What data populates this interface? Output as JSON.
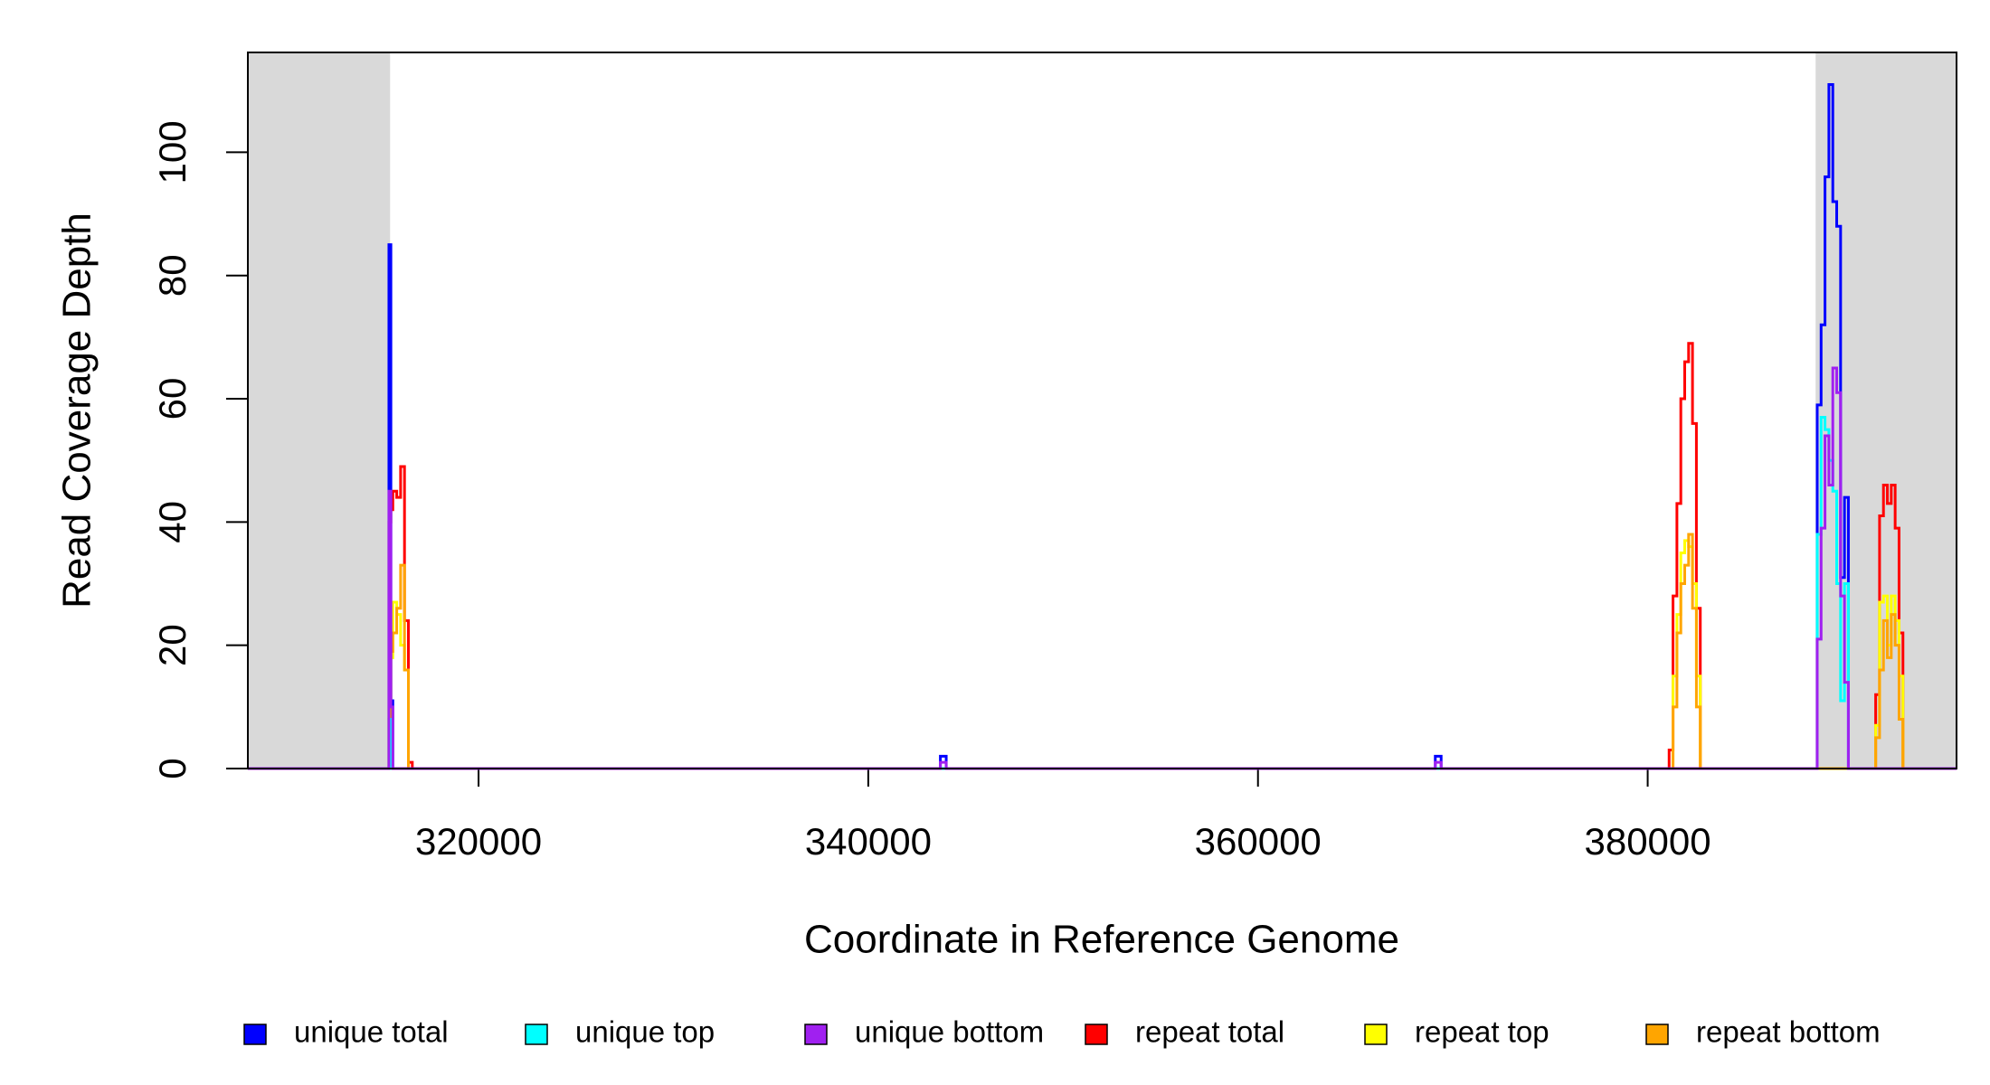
{
  "chart_data": {
    "type": "step",
    "x_label": "Coordinate in Reference Genome",
    "y_label": "Read Coverage Depth",
    "xlim": [
      308160,
      395850
    ],
    "ylim": [
      0,
      116.2
    ],
    "xticks": [
      320000,
      340000,
      360000,
      380000
    ],
    "yticks": [
      0,
      20,
      40,
      60,
      80,
      100
    ],
    "shaded_ranges": [
      [
        308160,
        315460
      ],
      [
        388620,
        395850
      ]
    ],
    "shade_color": "#d9d9d9",
    "x": [
      308160,
      315300,
      315400,
      315500,
      315600,
      315800,
      316000,
      316200,
      316400,
      316600,
      316800,
      343700,
      344000,
      369100,
      369400,
      381100,
      381300,
      381500,
      381700,
      381900,
      382100,
      382300,
      382500,
      382700,
      388700,
      388900,
      389100,
      389300,
      389500,
      389700,
      389900,
      390100,
      390300,
      391700,
      391900,
      392100,
      392300,
      392500,
      392700,
      392900,
      393100,
      395850
    ],
    "series": [
      {
        "name": "repeat total",
        "color": "#ff0000",
        "values": [
          0,
          0,
          40,
          42,
          45,
          44,
          49,
          24,
          1,
          0,
          0,
          0,
          0,
          0,
          0,
          3,
          28,
          43,
          60,
          66,
          69,
          56,
          26,
          0,
          0,
          0,
          0,
          0,
          0,
          0,
          0,
          0,
          0,
          12,
          41,
          46,
          43,
          46,
          39,
          22,
          0,
          0
        ]
      },
      {
        "name": "repeat top",
        "color": "#ffff00",
        "values": [
          0,
          0,
          10,
          18,
          27,
          25,
          20,
          16,
          0,
          0,
          0,
          0,
          0,
          0,
          0,
          0,
          15,
          25,
          35,
          37,
          36,
          30,
          15,
          0,
          0,
          0,
          0,
          0,
          0,
          0,
          0,
          0,
          0,
          7,
          27,
          28,
          20,
          28,
          24,
          15,
          0,
          0
        ]
      },
      {
        "name": "repeat bottom",
        "color": "#ffa500",
        "values": [
          0,
          0,
          8,
          19,
          22,
          26,
          33,
          16,
          0,
          0,
          0,
          0,
          0,
          0,
          0,
          0,
          10,
          22,
          30,
          33,
          38,
          26,
          10,
          0,
          0,
          0,
          0,
          0,
          0,
          0,
          0,
          0,
          0,
          5,
          16,
          24,
          18,
          25,
          20,
          8,
          0,
          0
        ]
      },
      {
        "name": "unique total",
        "color": "#0000ff",
        "values": [
          0,
          0,
          85,
          11,
          0,
          0,
          0,
          0,
          0,
          0,
          0,
          2,
          0,
          2,
          0,
          0,
          0,
          0,
          0,
          0,
          0,
          0,
          0,
          0,
          59,
          72,
          96,
          111,
          92,
          88,
          31,
          44,
          0,
          0,
          0,
          0,
          0,
          0,
          0,
          0,
          0,
          0
        ]
      },
      {
        "name": "unique top",
        "color": "#00ffff",
        "values": [
          0,
          0,
          8,
          0,
          0,
          0,
          0,
          0,
          0,
          0,
          0,
          0,
          0,
          0,
          0,
          0,
          0,
          0,
          0,
          0,
          0,
          0,
          0,
          0,
          38,
          57,
          55,
          50,
          45,
          30,
          11,
          30,
          0,
          0,
          0,
          0,
          0,
          0,
          0,
          0,
          0,
          0
        ]
      },
      {
        "name": "unique bottom",
        "color": "#a020f0",
        "values": [
          0,
          0,
          45,
          10,
          0,
          0,
          0,
          0,
          0,
          0,
          0,
          1,
          0,
          1,
          0,
          0,
          0,
          0,
          0,
          0,
          0,
          0,
          0,
          0,
          21,
          39,
          54,
          46,
          65,
          61,
          28,
          14,
          0,
          0,
          0,
          0,
          0,
          0,
          0,
          0,
          0,
          0
        ]
      }
    ],
    "legend_order": [
      3,
      4,
      5,
      0,
      1,
      2
    ]
  }
}
